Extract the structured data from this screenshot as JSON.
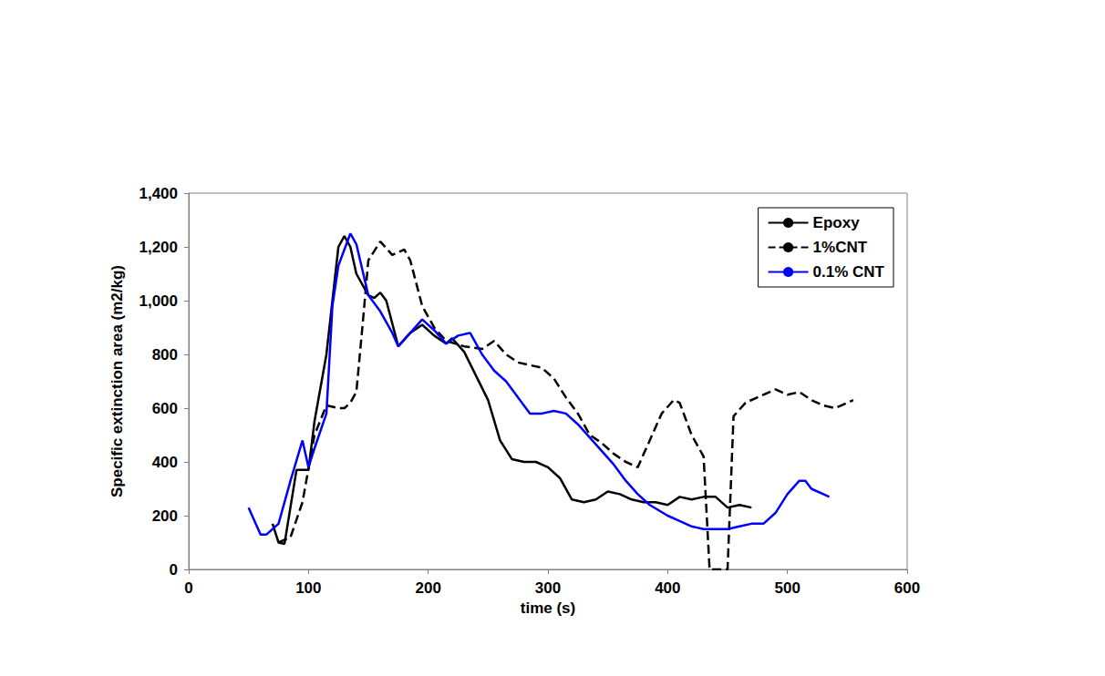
{
  "chart_data": {
    "type": "line",
    "x_label": "time (s)",
    "y_label": "Specific extinction area (m2/kg)",
    "xlim": [
      0,
      600
    ],
    "xticks": [
      0,
      100,
      200,
      300,
      400,
      500,
      600
    ],
    "ylim": [
      0,
      1400
    ],
    "yticks": [
      0,
      200,
      400,
      600,
      800,
      1000,
      1200,
      1400
    ],
    "grid": false,
    "legend": "upper right",
    "series": [
      {
        "name": "Epoxy",
        "color": "#000000",
        "line_style": "solid",
        "x": [
          70,
          75,
          80,
          90,
          100,
          105,
          115,
          125,
          130,
          135,
          140,
          150,
          155,
          160,
          165,
          175,
          185,
          195,
          205,
          215,
          220,
          230,
          240,
          250,
          260,
          270,
          280,
          290,
          300,
          310,
          320,
          330,
          340,
          350,
          360,
          370,
          380,
          390,
          400,
          410,
          420,
          430,
          440,
          450,
          460,
          470
        ],
        "values": [
          170,
          100,
          95,
          370,
          370,
          550,
          800,
          1200,
          1240,
          1200,
          1100,
          1020,
          1010,
          1030,
          1000,
          830,
          880,
          910,
          870,
          840,
          860,
          810,
          720,
          630,
          480,
          410,
          400,
          400,
          380,
          340,
          260,
          250,
          260,
          290,
          280,
          260,
          250,
          250,
          240,
          270,
          260,
          270,
          270,
          230,
          240,
          230
        ]
      },
      {
        "name": "1%CNT",
        "color": "#000000",
        "line_style": "dashed",
        "x": [
          75,
          85,
          95,
          105,
          115,
          125,
          130,
          135,
          140,
          145,
          150,
          160,
          170,
          180,
          185,
          195,
          205,
          215,
          230,
          245,
          255,
          265,
          275,
          285,
          295,
          305,
          315,
          325,
          335,
          345,
          355,
          365,
          375,
          385,
          395,
          405,
          410,
          420,
          430,
          435,
          445,
          450,
          455,
          465,
          475,
          490,
          500,
          510,
          520,
          530,
          540,
          550,
          555
        ],
        "values": [
          100,
          120,
          250,
          500,
          610,
          600,
          600,
          620,
          660,
          900,
          1150,
          1220,
          1170,
          1190,
          1150,
          980,
          900,
          850,
          830,
          820,
          850,
          800,
          770,
          760,
          750,
          710,
          640,
          580,
          500,
          470,
          430,
          400,
          380,
          480,
          580,
          630,
          620,
          500,
          420,
          0,
          0,
          0,
          570,
          620,
          640,
          670,
          650,
          660,
          630,
          610,
          600,
          620,
          630
        ]
      },
      {
        "name": "0.1% CNT",
        "color": "#0000ff",
        "line_style": "solid",
        "x": [
          50,
          60,
          65,
          75,
          85,
          95,
          100,
          105,
          115,
          120,
          125,
          135,
          140,
          150,
          160,
          170,
          175,
          185,
          195,
          205,
          215,
          225,
          235,
          245,
          255,
          265,
          275,
          285,
          295,
          305,
          315,
          325,
          335,
          345,
          355,
          365,
          375,
          385,
          400,
          410,
          420,
          430,
          440,
          450,
          460,
          470,
          480,
          490,
          500,
          510,
          515,
          520,
          530,
          535
        ],
        "values": [
          230,
          130,
          130,
          170,
          330,
          480,
          380,
          450,
          580,
          980,
          1130,
          1250,
          1210,
          1020,
          960,
          880,
          830,
          880,
          930,
          890,
          840,
          870,
          880,
          800,
          740,
          700,
          640,
          580,
          580,
          590,
          580,
          540,
          490,
          440,
          390,
          330,
          280,
          240,
          200,
          180,
          160,
          150,
          150,
          150,
          160,
          170,
          170,
          210,
          280,
          330,
          330,
          300,
          280,
          270
        ]
      }
    ]
  }
}
